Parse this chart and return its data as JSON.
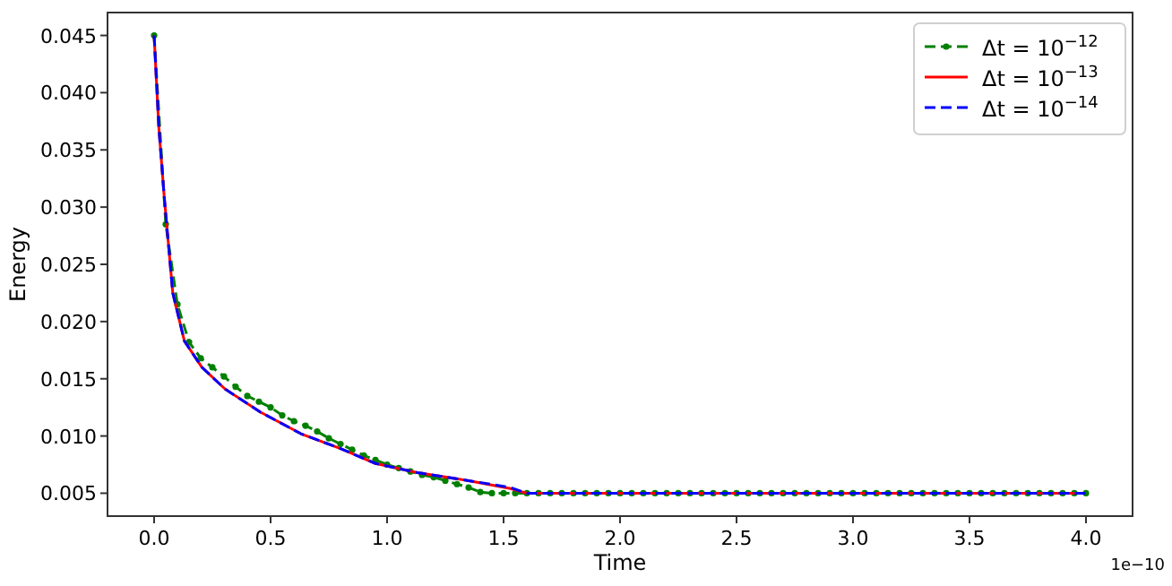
{
  "chart_data": {
    "type": "line",
    "xlabel": "Time",
    "ylabel": "Energy",
    "annotations": [
      "1e−10"
    ],
    "xlim": [
      -0.2,
      4.2
    ],
    "xticks": [
      {
        "value": 0,
        "label": "0.0"
      },
      0.5,
      {
        "value": 1,
        "label": "1.0"
      },
      1.5,
      {
        "value": 2,
        "label": "2.0"
      },
      2.5,
      {
        "value": 3,
        "label": "3.0"
      },
      3.5,
      {
        "value": 4,
        "label": "4.0"
      }
    ],
    "ylim": [
      0.003,
      0.047
    ],
    "yticks": [
      0.005,
      {
        "value": 0.01,
        "label": "0.010"
      },
      0.015,
      {
        "value": 0.02,
        "label": "0.020"
      },
      0.025,
      {
        "value": 0.03,
        "label": "0.030"
      },
      0.035,
      {
        "value": 0.04,
        "label": "0.040"
      },
      0.045
    ],
    "grid": false,
    "legend": "top right",
    "series": [
      {
        "name": "Δt = 10$^{−12}$",
        "color": "#008000",
        "marker": "circle",
        "line_style": "dashed",
        "x": [
          0,
          0.05,
          0.1,
          0.15,
          0.2,
          0.25,
          0.3,
          0.35,
          0.4,
          0.45,
          0.5,
          0.55,
          0.6,
          0.65,
          0.7,
          0.75,
          0.8,
          0.85,
          0.9,
          0.95,
          1,
          1.05,
          1.1,
          1.15,
          1.2,
          1.25,
          1.3,
          1.35,
          1.4,
          1.45,
          1.5,
          1.55,
          1.6,
          1.65,
          1.7,
          1.75,
          1.8,
          1.85,
          1.9,
          1.95,
          2,
          2.05,
          2.1,
          2.15,
          2.2,
          2.25,
          2.3,
          2.35,
          2.4,
          2.45,
          2.5,
          2.55,
          2.6,
          2.65,
          2.7,
          2.75,
          2.8,
          2.85,
          2.9,
          2.95,
          3,
          3.05,
          3.1,
          3.15,
          3.2,
          3.25,
          3.3,
          3.35,
          3.4,
          3.45,
          3.5,
          3.55,
          3.6,
          3.65,
          3.7,
          3.75,
          3.8,
          3.85,
          3.9,
          3.95,
          4
        ],
        "values": [
          0.045,
          0.0285,
          0.0215,
          0.0182,
          0.0168,
          0.016,
          0.0152,
          0.0143,
          0.0135,
          0.013,
          0.0125,
          0.0118,
          0.0113,
          0.0109,
          0.0104,
          0.0098,
          0.0093,
          0.0088,
          0.0083,
          0.0079,
          0.0075,
          0.0072,
          0.0069,
          0.0066,
          0.0064,
          0.0061,
          0.0058,
          0.0055,
          0.0051,
          0.005,
          0.005,
          0.005,
          0.005,
          0.005,
          0.005,
          0.005,
          0.005,
          0.005,
          0.005,
          0.005,
          0.005,
          0.005,
          0.005,
          0.005,
          0.005,
          0.005,
          0.005,
          0.005,
          0.005,
          0.005,
          0.005,
          0.005,
          0.005,
          0.005,
          0.005,
          0.005,
          0.005,
          0.005,
          0.005,
          0.005,
          0.005,
          0.005,
          0.005,
          0.005,
          0.005,
          0.005,
          0.005,
          0.005,
          0.005,
          0.005,
          0.005,
          0.005,
          0.005,
          0.005,
          0.005,
          0.005,
          0.005,
          0.005,
          0.005,
          0.005,
          0.005
        ]
      },
      {
        "name": "Δt = 10$^{−13}$",
        "color": "#ff0000",
        "marker": "none",
        "line_style": "solid",
        "x": [
          0,
          0.02,
          0.043,
          0.08,
          0.13,
          0.205,
          0.305,
          0.455,
          0.63,
          0.8,
          0.95,
          1.13,
          1.35,
          1.53,
          1.6,
          4
        ],
        "values": [
          0.045,
          0.037,
          0.031,
          0.0225,
          0.0183,
          0.016,
          0.0141,
          0.0121,
          0.0102,
          0.0089,
          0.0076,
          0.0068,
          0.0061,
          0.0054,
          0.005,
          0.005
        ]
      },
      {
        "name": "Δt = 10$^{−14}$",
        "color": "#0000ff",
        "marker": "none",
        "line_style": "dashed",
        "x": [
          0,
          0.02,
          0.043,
          0.08,
          0.13,
          0.205,
          0.305,
          0.455,
          0.63,
          0.8,
          0.95,
          1.13,
          1.35,
          1.53,
          1.6,
          4
        ],
        "values": [
          0.045,
          0.037,
          0.031,
          0.0225,
          0.0183,
          0.016,
          0.0141,
          0.0121,
          0.0102,
          0.0089,
          0.0076,
          0.0068,
          0.0061,
          0.0055,
          0.005,
          0.005
        ]
      }
    ]
  }
}
